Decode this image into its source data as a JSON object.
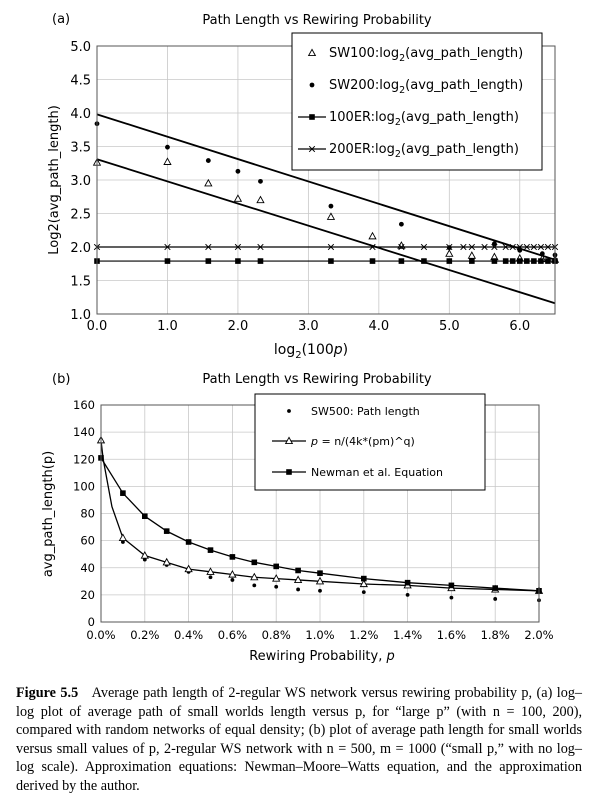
{
  "chart_data": [
    {
      "type": "scatter",
      "panel_label": "(a)",
      "title": "Path Length vs Rewiring Probability",
      "xlabel_main": "log",
      "xlabel_sub": "2",
      "xlabel_tail": "(100",
      "xlabel_var": "p",
      "xlabel_close": ")",
      "ylabel": "Log2(avg_path_length)",
      "xlim": [
        0,
        6.5
      ],
      "ylim": [
        1.0,
        5.0
      ],
      "xticks": [
        "0.0",
        "1.0",
        "2.0",
        "3.0",
        "4.0",
        "5.0",
        "6.0"
      ],
      "yticks": [
        "1.0",
        "1.5",
        "2.0",
        "2.5",
        "3.0",
        "3.5",
        "4.0",
        "4.5",
        "5.0"
      ],
      "grid": true,
      "legend_position": "top-right",
      "series": [
        {
          "name": "SW100:log2(avg_path_length)",
          "legend_prefix": "SW100:log",
          "legend_sub": "2",
          "legend_suffix": "(avg_path_length)",
          "marker": "triangle",
          "line": false,
          "x": [
            0.0,
            1.0,
            1.58,
            2.0,
            2.32,
            3.32,
            3.91,
            4.32,
            5.0,
            5.32,
            5.64,
            6.0,
            6.32,
            6.5
          ],
          "y": [
            3.26,
            3.27,
            2.95,
            2.72,
            2.7,
            2.45,
            2.16,
            2.02,
            1.9,
            1.87,
            1.85,
            1.83,
            1.82,
            1.81
          ]
        },
        {
          "name": "SW200:log2(avg_path_length)",
          "legend_prefix": "SW200:log",
          "legend_sub": "2",
          "legend_suffix": "(avg_path_length)",
          "marker": "circle",
          "line": false,
          "x": [
            0.0,
            1.0,
            1.58,
            2.0,
            2.32,
            3.32,
            4.32,
            5.0,
            5.64,
            6.0,
            6.32,
            6.5
          ],
          "y": [
            3.84,
            3.49,
            3.29,
            3.13,
            2.98,
            2.61,
            2.34,
            1.99,
            2.05,
            1.95,
            1.9,
            1.88
          ]
        },
        {
          "name": "100ER:log2(avg_path_length)",
          "legend_prefix": "100ER:log",
          "legend_sub": "2",
          "legend_suffix": "(avg_path_length)",
          "marker": "square",
          "line": true,
          "x": [
            0.0,
            1.0,
            1.58,
            2.0,
            2.32,
            3.32,
            3.91,
            4.32,
            4.64,
            5.0,
            5.32,
            5.64,
            5.8,
            5.9,
            6.0,
            6.1,
            6.2,
            6.3,
            6.4,
            6.5
          ],
          "y": [
            1.79,
            1.79,
            1.79,
            1.79,
            1.79,
            1.79,
            1.79,
            1.79,
            1.79,
            1.79,
            1.79,
            1.79,
            1.79,
            1.79,
            1.79,
            1.79,
            1.79,
            1.79,
            1.79,
            1.79
          ]
        },
        {
          "name": "200ER:log2(avg_path_length)",
          "legend_prefix": "200ER:log",
          "legend_sub": "2",
          "legend_suffix": "(avg_path_length)",
          "marker": "cross",
          "line": true,
          "x": [
            0.0,
            1.0,
            1.58,
            2.0,
            2.32,
            3.32,
            3.91,
            4.32,
            4.64,
            5.0,
            5.2,
            5.32,
            5.5,
            5.64,
            5.8,
            5.9,
            6.0,
            6.1,
            6.2,
            6.3,
            6.4,
            6.5
          ],
          "y": [
            2.0,
            2.0,
            2.0,
            2.0,
            2.0,
            2.0,
            2.0,
            2.0,
            2.0,
            2.0,
            2.0,
            2.0,
            2.0,
            2.0,
            2.0,
            2.0,
            2.0,
            2.0,
            2.0,
            2.0,
            2.0,
            2.0
          ]
        }
      ],
      "trend_lines": [
        {
          "x": [
            0.0,
            6.5
          ],
          "y": [
            3.98,
            1.81
          ]
        },
        {
          "x": [
            0.0,
            6.5
          ],
          "y": [
            3.31,
            1.16
          ]
        }
      ]
    },
    {
      "type": "line",
      "panel_label": "(b)",
      "title": "Path Length vs Rewiring Probability",
      "xlabel": "Rewiring Probability, ",
      "xlabel_var": "p",
      "ylabel": "avg_path_length(p)",
      "xlim": [
        0,
        2.0
      ],
      "ylim": [
        0,
        160
      ],
      "xticks": [
        "0.0%",
        "0.2%",
        "0.4%",
        "0.6%",
        "0.8%",
        "1.0%",
        "1.2%",
        "1.4%",
        "1.6%",
        "1.8%",
        "2.0%"
      ],
      "yticks": [
        "0",
        "20",
        "40",
        "60",
        "80",
        "100",
        "120",
        "140",
        "160"
      ],
      "grid": true,
      "legend_position": "top-right",
      "series": [
        {
          "name": "SW500: Path length",
          "marker": "dot",
          "line": false,
          "x": [
            0.0,
            0.1,
            0.2,
            0.3,
            0.4,
            0.5,
            0.6,
            0.7,
            0.8,
            0.9,
            1.0,
            1.2,
            1.4,
            1.6,
            1.8,
            2.0
          ],
          "y": [
            121,
            59,
            46,
            42,
            37,
            33,
            31,
            27,
            26,
            24,
            23,
            22,
            20,
            18,
            17,
            16
          ]
        },
        {
          "name": "p = n/(4k*(pm)^q)",
          "legend_var": "p",
          "legend_rest": " = n/(4k*(pm)^q)",
          "marker": "triangle",
          "line": true,
          "x": [
            0.0,
            0.01,
            0.05,
            0.1,
            0.2,
            0.3,
            0.4,
            0.5,
            0.6,
            0.7,
            0.8,
            0.9,
            1.0,
            1.2,
            1.4,
            1.6,
            1.8,
            2.0
          ],
          "y": [
            134,
            120,
            85,
            62,
            49,
            44,
            39,
            37,
            35,
            33,
            32,
            31,
            30,
            28,
            27,
            25,
            24,
            23
          ]
        },
        {
          "name": "Newman et al. Equation",
          "marker": "square",
          "line": true,
          "x": [
            0.0,
            0.1,
            0.2,
            0.3,
            0.4,
            0.5,
            0.6,
            0.7,
            0.8,
            0.9,
            1.0,
            1.2,
            1.4,
            1.6,
            1.8,
            2.0
          ],
          "y": [
            121,
            95,
            78,
            67,
            59,
            53,
            48,
            44,
            41,
            38,
            36,
            32,
            29,
            27,
            25,
            23
          ]
        }
      ]
    }
  ],
  "caption": {
    "label": "Figure 5.5",
    "text": "Average path length of 2-regular WS network versus rewiring probability p, (a) log–log plot of average path of small worlds length versus p, for “large p” (with n = 100, 200), compared with random networks of equal density; (b) plot of average path length for small worlds versus small values of p, 2-regular WS network with n = 500, m = 1000 (“small p,” with no log–log scale). Approximation equations: Newman–Moore–Watts equation, and the approximation derived by the author."
  }
}
